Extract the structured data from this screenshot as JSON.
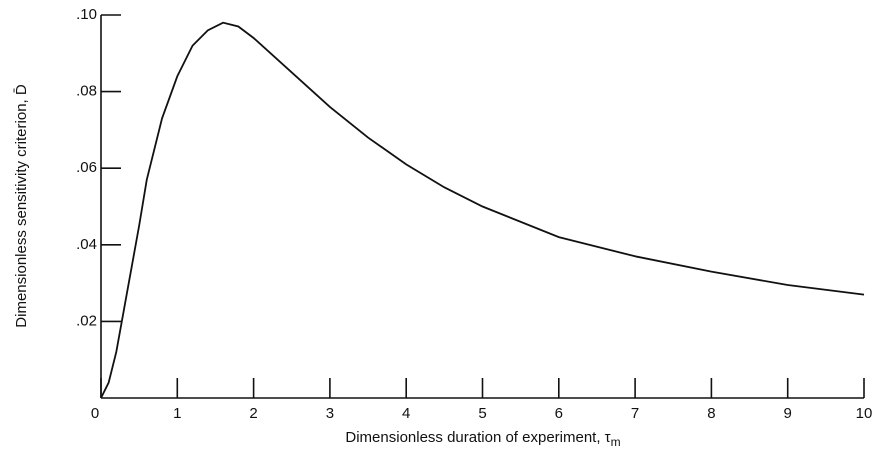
{
  "chart_data": {
    "type": "line",
    "xlabel": "Dimensionless duration of experiment, τ",
    "xlabel_subscript": "m",
    "ylabel": "Dimensionless sensitivity criterion, D̄",
    "x": [
      0,
      0.1,
      0.2,
      0.3,
      0.4,
      0.5,
      0.6,
      0.8,
      1.0,
      1.2,
      1.4,
      1.6,
      1.8,
      2.0,
      2.5,
      3,
      3.5,
      4,
      4.5,
      5,
      6,
      7,
      8,
      9,
      10
    ],
    "series": [
      {
        "color": "#111111",
        "values": [
          0,
          0.004,
          0.012,
          0.023,
          0.034,
          0.045,
          0.057,
          0.073,
          0.084,
          0.092,
          0.096,
          0.098,
          0.097,
          0.094,
          0.085,
          0.076,
          0.068,
          0.061,
          0.055,
          0.05,
          0.042,
          0.037,
          0.033,
          0.0295,
          0.027
        ]
      }
    ],
    "xlim": [
      0,
      10
    ],
    "ylim": [
      0,
      0.1
    ],
    "xticks": [
      0,
      1,
      2,
      3,
      4,
      5,
      6,
      7,
      8,
      9,
      10
    ],
    "yticks": [
      {
        "value": 0.02,
        "label": ".02"
      },
      {
        "value": 0.04,
        "label": ".04"
      },
      {
        "value": 0.06,
        "label": ".06"
      },
      {
        "value": 0.08,
        "label": ".08"
      },
      {
        "value": 0.1,
        "label": ".10"
      }
    ],
    "grid": false
  }
}
